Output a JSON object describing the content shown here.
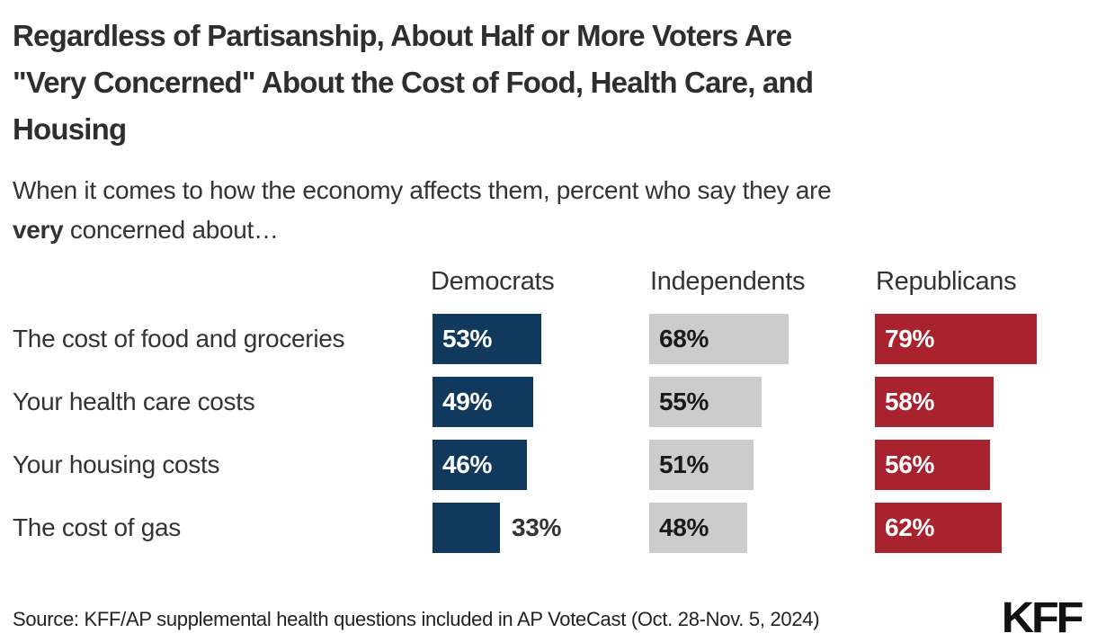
{
  "header": {
    "title_lines": [
      "Regardless of Partisanship, About Half or More Voters Are",
      "\"Very Concerned\" About the Cost of Food, Health Care, and",
      "Housing"
    ],
    "subtitle_line1": "When it comes to how the economy affects them, percent who say they are",
    "subtitle_line2_bold": "very",
    "subtitle_line2_rest": " concerned about…"
  },
  "chart_data": {
    "type": "bar",
    "orientation": "horizontal",
    "grid": false,
    "xlim": [
      0,
      100
    ],
    "value_suffix": "%",
    "legend_position": "column-headers",
    "categories": [
      "The cost of food and groceries",
      "Your health care costs",
      "Your housing costs",
      "The cost of gas"
    ],
    "series": [
      {
        "name": "Democrats",
        "color": "#11395D",
        "label_color": "#FFFFFF",
        "values": [
          53,
          49,
          46,
          33
        ]
      },
      {
        "name": "Independents",
        "color": "#CCCCCC",
        "label_color": "#1A1A1A",
        "values": [
          68,
          55,
          51,
          48
        ]
      },
      {
        "name": "Republicans",
        "color": "#A8232E",
        "label_color": "#FFFFFF",
        "values": [
          79,
          58,
          56,
          62
        ]
      }
    ]
  },
  "footer": {
    "source": "Source: KFF/AP supplemental health questions included in AP VoteCast (Oct. 28-Nov. 5, 2024)",
    "logo": "KFF"
  }
}
